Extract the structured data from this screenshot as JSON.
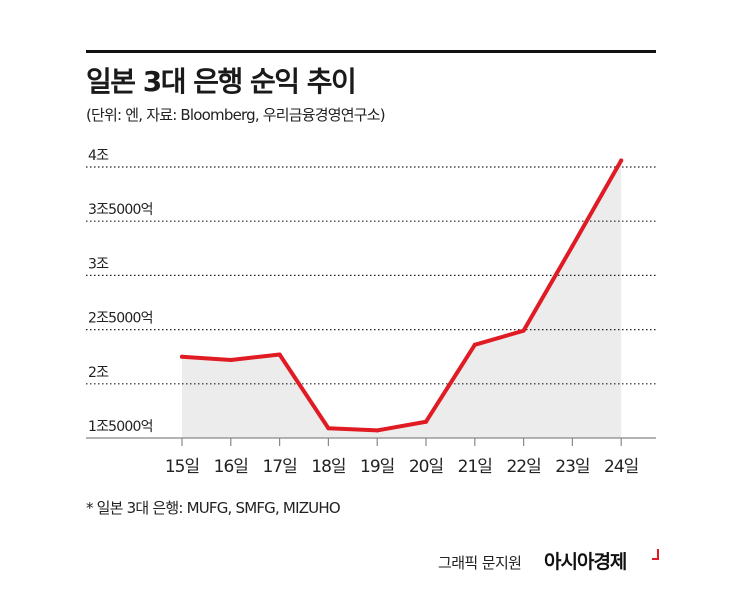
{
  "header": {
    "title": "일본 3대 은행 순익 추이",
    "subtitle": "(단위: 엔, 자료: Bloomberg, 우리금융경영연구소)"
  },
  "footnote": "* 일본 3대 은행: MUFG, SMFG, MIZUHO",
  "credit": {
    "graphic": "그래픽 문지원",
    "brand": "아시아경제"
  },
  "colors": {
    "line": "#e01b24",
    "area": "#ececec",
    "grid": "#222222",
    "axis": "#888888"
  },
  "chart_data": {
    "type": "area",
    "title": "일본 3대 은행 순익 추이",
    "x": [
      "15일",
      "16일",
      "17일",
      "18일",
      "19일",
      "20일",
      "21일",
      "22일",
      "23일",
      "24일"
    ],
    "series": [
      {
        "values": [
          2.25,
          2.22,
          2.27,
          1.59,
          1.57,
          1.65,
          2.36,
          2.49,
          3.27,
          4.06
        ]
      }
    ],
    "y_ticks": [
      1.5,
      2,
      2.5,
      3,
      3.5,
      4
    ],
    "y_tick_labels": [
      "1조5000억",
      "2조",
      "2조5000억",
      "3조",
      "3조5000억",
      "4조"
    ],
    "ylim": [
      1.5,
      4
    ],
    "unit": "엔",
    "grid": "horizontal dotted",
    "legend": "none"
  }
}
